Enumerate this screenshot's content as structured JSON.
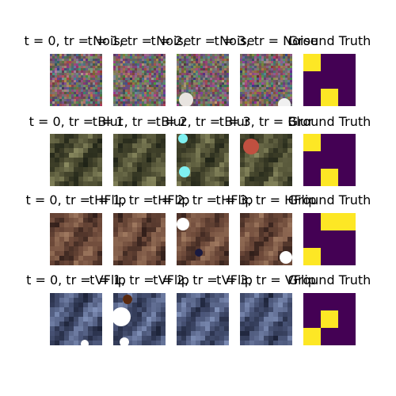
{
  "chart_data": {
    "type": "heatmap",
    "description_of_layout": "",
    "rows": [
      {
        "name": "Noise",
        "titles": [
          "t = 0, tr = Noise",
          "t = 1, tr = Noise",
          "t = 2, tr = Noise",
          "t = 3, tr = Noise",
          "Ground Truth"
        ],
        "palette": {
          "base": "#7a6a68",
          "hi": "#a08d8a",
          "lo": "#4a3e44"
        },
        "ground_truth": [
          [
            1,
            0,
            0
          ],
          [
            0,
            0,
            0
          ],
          [
            0,
            1,
            0
          ]
        ]
      },
      {
        "name": "Blur",
        "titles": [
          "t = 0, tr = Blur",
          "t = 1, tr = Blur",
          "t = 2, tr = Blur",
          "t = 3, tr = Blur",
          "Ground Truth"
        ],
        "palette": {
          "base": "#4a4a30",
          "hi": "#8a8a60",
          "lo": "#1e2216"
        },
        "ground_truth": [
          [
            1,
            0,
            0
          ],
          [
            0,
            0,
            0
          ],
          [
            0,
            1,
            0
          ]
        ]
      },
      {
        "name": "HFlip",
        "titles": [
          "t = 0, tr = HFlip",
          "t = 1, tr = HFlip",
          "t = 2, tr = HFlip",
          "t = 3, tr = HFlip",
          "Ground Truth"
        ],
        "palette": {
          "base": "#6e4a3a",
          "hi": "#a07a60",
          "lo": "#2e1c18"
        },
        "ground_truth": [
          [
            0,
            1,
            1
          ],
          [
            0,
            0,
            0
          ],
          [
            1,
            0,
            0
          ]
        ]
      },
      {
        "name": "VFlip",
        "titles": [
          "t = 0, tr = VFlip",
          "t = 1, tr = VFlip",
          "t = 2, tr = VFlip",
          "t = 3, tr = VFlip",
          "Ground Truth"
        ],
        "palette": {
          "base": "#4a5578",
          "hi": "#8090b8",
          "lo": "#1c2238"
        },
        "ground_truth": [
          [
            0,
            0,
            0
          ],
          [
            0,
            1,
            0
          ],
          [
            1,
            0,
            0
          ]
        ]
      }
    ],
    "colormap": {
      "low": "#440154",
      "high": "#fde725"
    }
  }
}
